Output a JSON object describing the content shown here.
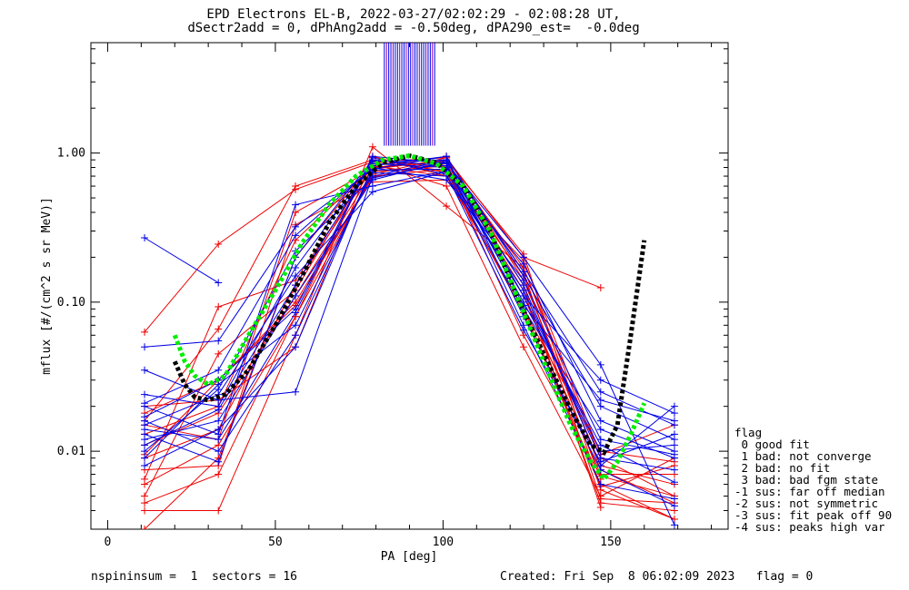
{
  "title_line1": "EPD Electrons EL-B, 2022-03-27/02:02:29 - 02:08:28 UT,",
  "title_line2": "dSectr2add = 0, dPhAng2add = -0.50deg, dPA290_est=  -0.0deg",
  "footer": {
    "left": "nspininsum =  1  sectors = 16",
    "right": "Created: Fri Sep  8 06:02:09 2023   flag = 0"
  },
  "legend": {
    "title": "flag",
    "items": [
      " 0 good fit",
      " 1 bad: not converge",
      " 2 bad: no fit",
      " 3 bad: bad fgm state",
      "-1 sus: far off median",
      "-2 sus: not symmetric",
      "-3 sus: fit peak off 90",
      "-4 sus: peaks high var"
    ]
  },
  "colors": {
    "red": "#ee0000",
    "blue": "#0000e6",
    "green": "#00ee00",
    "black": "#000000",
    "purple": "#8800aa"
  },
  "chart_data": {
    "type": "line",
    "xlabel": "PA [deg]",
    "ylabel": "mflux [#/(cm^2 s sr MeV)]",
    "x_ticks": [
      "0",
      "50",
      "100",
      "150"
    ],
    "x_tick_values": [
      0,
      50,
      100,
      150
    ],
    "y_ticks": [
      "0.01",
      "0.10",
      "1.00"
    ],
    "y_tick_values": [
      0.01,
      0.1,
      1.0
    ],
    "xlim": [
      -5,
      185
    ],
    "ylim": [
      0.003,
      5.5
    ],
    "yscale": "log",
    "pa_bins": [
      11,
      33,
      56,
      79,
      101,
      124,
      147,
      169
    ],
    "red_series": [
      [
        0.063,
        0.245,
        0.57,
        0.87,
        0.93,
        0.2,
        0.125,
        null
      ],
      [
        0.004,
        0.004,
        0.06,
        1.1,
        0.44,
        0.17,
        0.009,
        0.005
      ],
      [
        0.009,
        0.014,
        0.13,
        0.79,
        0.95,
        0.14,
        0.008,
        0.006
      ],
      [
        0.013,
        0.02,
        0.26,
        0.8,
        0.88,
        0.17,
        0.0075,
        0.0045
      ],
      [
        0.006,
        0.011,
        0.08,
        0.95,
        0.7,
        0.09,
        0.006,
        0.0035
      ],
      [
        0.018,
        0.03,
        0.1,
        0.7,
        0.78,
        0.15,
        0.0065,
        null
      ],
      [
        0.003,
        0.009,
        0.2,
        0.85,
        0.6,
        0.05,
        0.005,
        0.009
      ],
      [
        0.011,
        0.018,
        0.11,
        0.75,
        0.82,
        0.12,
        0.0045,
        0.004
      ],
      [
        0.0075,
        0.008,
        0.33,
        0.64,
        0.66,
        0.19,
        0.0095,
        0.015
      ],
      [
        0.015,
        0.012,
        0.4,
        0.78,
        0.9,
        0.21,
        0.0055,
        0.0035
      ],
      [
        0.005,
        0.045,
        0.12,
        0.88,
        0.76,
        0.11,
        0.007,
        0.007
      ],
      [
        0.0095,
        0.03,
        0.095,
        0.69,
        0.85,
        0.13,
        0.0042,
        null
      ],
      [
        0.02,
        0.022,
        0.05,
        0.93,
        0.74,
        0.085,
        0.0058,
        0.008
      ],
      [
        0.0045,
        0.007,
        0.08,
        0.72,
        0.93,
        0.16,
        0.0048,
        0.0045
      ],
      [
        0.0065,
        0.093,
        0.14,
        0.82,
        0.7,
        0.09,
        0.01,
        0.0085
      ],
      [
        0.016,
        0.066,
        0.6,
        0.9,
        0.8,
        0.06,
        0.0068,
        0.005
      ]
    ],
    "blue_series": [
      [
        0.27,
        0.135,
        null,
        null,
        null,
        null,
        null,
        null
      ],
      [
        0.05,
        0.055,
        0.32,
        0.78,
        0.95,
        0.15,
        0.02,
        0.012
      ],
      [
        0.035,
        0.022,
        0.025,
        0.7,
        0.9,
        0.11,
        0.03,
        0.018
      ],
      [
        0.024,
        0.02,
        0.17,
        0.85,
        0.8,
        0.13,
        0.008,
        0.02
      ],
      [
        0.02,
        0.013,
        0.45,
        0.6,
        0.76,
        0.09,
        0.014,
        0.009
      ],
      [
        0.017,
        0.03,
        0.09,
        0.95,
        0.85,
        0.07,
        0.006,
        0.0048
      ],
      [
        0.012,
        0.016,
        0.11,
        0.66,
        0.88,
        0.16,
        0.025,
        0.015
      ],
      [
        0.009,
        0.028,
        0.07,
        0.74,
        0.7,
        0.12,
        0.009,
        0.0075
      ],
      [
        0.013,
        0.0085,
        0.2,
        0.9,
        0.82,
        0.1,
        0.011,
        0.0062
      ],
      [
        0.015,
        0.024,
        0.15,
        0.55,
        0.75,
        0.18,
        0.016,
        0.01
      ],
      [
        0.008,
        0.014,
        0.05,
        0.82,
        0.95,
        0.08,
        0.0075,
        0.0043
      ],
      [
        0.021,
        0.035,
        0.28,
        0.8,
        0.66,
        0.14,
        0.012,
        0.0095
      ],
      [
        0.011,
        0.019,
        0.13,
        0.88,
        0.9,
        0.095,
        0.022,
        0.016
      ],
      [
        0.016,
        0.01,
        0.06,
        0.77,
        0.78,
        0.11,
        0.01,
        0.011
      ],
      [
        0.01,
        0.026,
        0.22,
        0.68,
        0.86,
        0.2,
        0.038,
        0.0032
      ],
      [
        0.014,
        0.012,
        0.085,
        0.93,
        0.72,
        0.065,
        0.0085,
        0.013
      ]
    ],
    "fit_green": {
      "x": [
        20,
        23,
        26,
        30,
        35,
        42,
        50,
        58,
        66,
        74,
        82,
        90,
        98,
        106,
        114,
        122,
        130,
        138,
        144,
        148,
        152,
        156,
        160
      ],
      "y": [
        0.06,
        0.04,
        0.032,
        0.028,
        0.032,
        0.06,
        0.12,
        0.25,
        0.45,
        0.7,
        0.9,
        0.96,
        0.85,
        0.6,
        0.3,
        0.11,
        0.04,
        0.015,
        0.0085,
        0.0065,
        0.0085,
        0.013,
        0.021
      ]
    },
    "fit_black": {
      "x": [
        20,
        23,
        26,
        30,
        35,
        42,
        50,
        58,
        66,
        74,
        82,
        90,
        98,
        106,
        114,
        122,
        130,
        138,
        144,
        148,
        152,
        156,
        160
      ],
      "y": [
        0.04,
        0.028,
        0.023,
        0.022,
        0.024,
        0.035,
        0.07,
        0.15,
        0.34,
        0.6,
        0.86,
        0.96,
        0.86,
        0.6,
        0.3,
        0.11,
        0.045,
        0.019,
        0.011,
        0.0098,
        0.015,
        0.06,
        0.26
      ]
    },
    "vertical_lines": {
      "x_start": 82.5,
      "x_end": 97.5,
      "count": 24,
      "y_from": 1.12,
      "y_to": 5.5
    }
  }
}
